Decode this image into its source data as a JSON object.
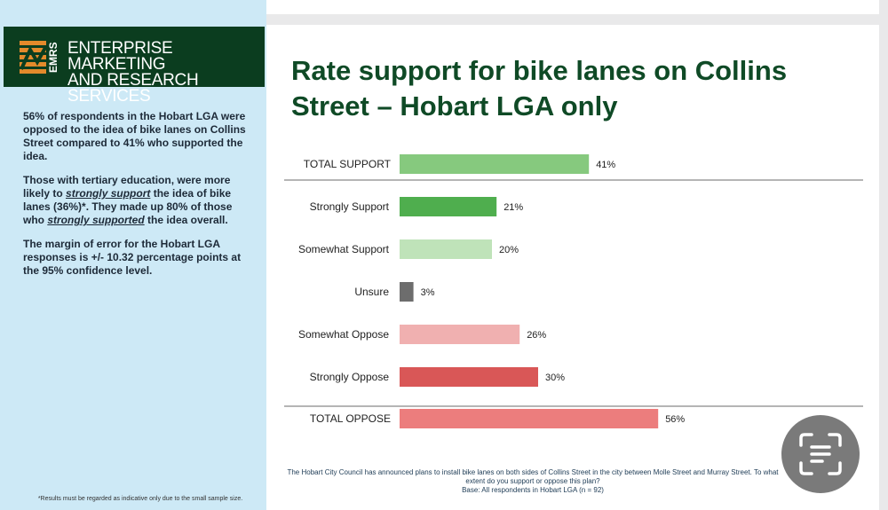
{
  "logo": {
    "mark_text": "EMRS",
    "line1": "ENTERPRISE MARKETING",
    "line2": "AND RESEARCH SERVICES"
  },
  "notes": {
    "p1": "56% of respondents in the Hobart LGA were opposed to the idea of bike lanes on Collins Street compared to 41% who supported the idea.",
    "p2_a": "Those with tertiary education, were more likely to ",
    "p2_em1": "strongly support",
    "p2_b": " the idea of bike lanes (36%)*.  They made up 80% of those who ",
    "p2_em2": "strongly supported",
    "p2_c": " the idea overall.",
    "p3": "The margin of error for the Hobart LGA responses is +/- 10.32 percentage points at the 95% confidence level."
  },
  "footnote": "*Results must be regarded as indicative only due to the small sample size.",
  "title": "Rate support for bike lanes on Collins Street – Hobart LGA only",
  "source_note": "The Hobart City Council has announced plans to install bike lanes on both sides of Collins Street in the city between Molle Street and Murray Street. To what extent do you support or oppose this plan?\nBase: All respondents in Hobart LGA (n = 92)",
  "chart_data": {
    "type": "bar",
    "orientation": "horizontal",
    "categories": [
      "TOTAL SUPPORT",
      "Strongly Support",
      "Somewhat Support",
      "Unsure",
      "Somewhat Oppose",
      "Strongly Oppose",
      "TOTAL OPPOSE"
    ],
    "values": [
      41,
      21,
      20,
      3,
      26,
      30,
      56
    ],
    "value_labels": [
      "41%",
      "21%",
      "20%",
      "3%",
      "26%",
      "30%",
      "56%"
    ],
    "unit": "%",
    "colors": [
      "#86c97e",
      "#4fae4e",
      "#bfe3b9",
      "#6d6d6d",
      "#f0b0b0",
      "#d95757",
      "#ec7d7d"
    ],
    "separators_after": [
      "TOTAL SUPPORT",
      "Strongly Oppose"
    ],
    "grid": false,
    "legend": "none"
  },
  "ocr_button": {
    "icon": "text-scan-icon"
  }
}
